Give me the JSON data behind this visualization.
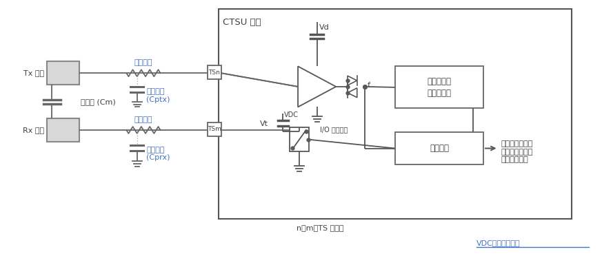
{
  "bg_color": "#ffffff",
  "blue": "#4472c4",
  "dark": "#404040",
  "line_color": "#595959",
  "ctsu_label": "CTSU 单元",
  "vd_label": "Vd",
  "vdc_label": "VDC",
  "vt_label": "Vt",
  "f_label": "f",
  "io_label": "I/O 驱动程序",
  "tsn_label": "TSn",
  "tsm_label": "TSm",
  "tx_label": "Tx 电极",
  "rx_label": "Rx 电极",
  "cm_label": "互电容 (Cm)",
  "damping_label": "阻尼电阻",
  "parasitic_label": "寄生电容",
  "cptx_label": "(Cptx)",
  "cprx_label": "(Cprx)",
  "sensor_line1": "传感器驱动",
  "sensor_line2": "脉冲发生器",
  "measure_label": "测量模块",
  "count_line1": "计数值（第一次",
  "count_line2": "测量结果、第二",
  "count_line3": "次测量结果）",
  "nm_label": "n、m：TS 通道号",
  "vdc_note": "VDC：降压转换器"
}
